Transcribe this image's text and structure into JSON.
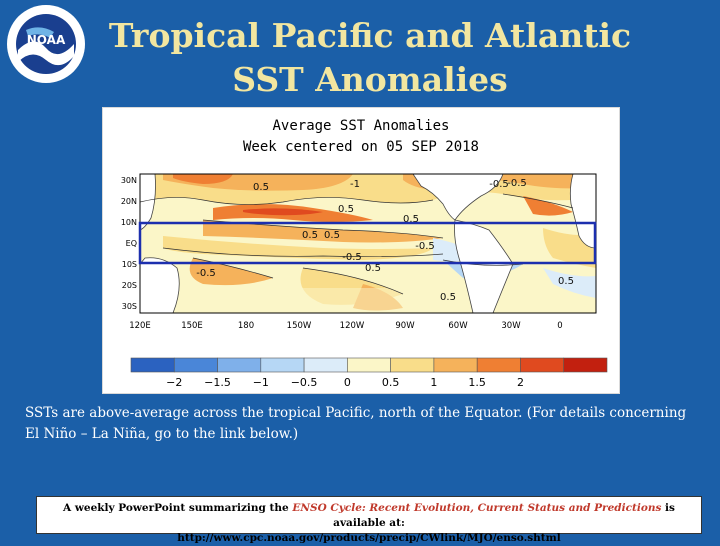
{
  "slide": {
    "title_line1": "Tropical Pacific and Atlantic",
    "title_line2": "SST Anomalies",
    "logo_text": "NOAA"
  },
  "map": {
    "title_line1": "Average SST Anomalies",
    "title_line2": "Week centered on 05 SEP 2018",
    "lat_labels": [
      "30N",
      "20N",
      "10N",
      "EQ",
      "10S",
      "20S",
      "30S"
    ],
    "lon_labels": [
      "120E",
      "150E",
      "180",
      "150W",
      "120W",
      "90W",
      "60W",
      "30W",
      "0"
    ],
    "contour_labels": [
      "0.5",
      "-1",
      "-0.5",
      "0.5",
      "0.5",
      "-0.5",
      "0.5",
      "0.5",
      "-0.5",
      "-0.5",
      "-0.5",
      "0.5",
      "0.5",
      "0.5"
    ],
    "colorbar": {
      "ticks": [
        "−2",
        "−1.5",
        "−1",
        "−0.5",
        "0",
        "0.5",
        "1",
        "1.5",
        "2"
      ],
      "colors": [
        "#2b62c0",
        "#4a86d8",
        "#7fb0ea",
        "#b6d7f5",
        "#dcecf9",
        "#fbf6c8",
        "#f9dd8a",
        "#f5b25b",
        "#ef7f33",
        "#e04a1f",
        "#c2200f"
      ]
    },
    "highlight_box_color": "#1c2fae"
  },
  "caption": {
    "text": "SSTs are above-average across the tropical Pacific, north of the Equator. (For details concerning El Niño – La Niña, go to the link below.)"
  },
  "footer": {
    "prefix": "A weekly PowerPoint summarizing the ",
    "emphasis": "ENSO Cycle: Recent Evolution, Current Status and Predictions",
    "suffix": " is available at:",
    "url": "http://www.cpc.noaa.gov/products/precip/CWlink/MJO/enso.shtml"
  }
}
